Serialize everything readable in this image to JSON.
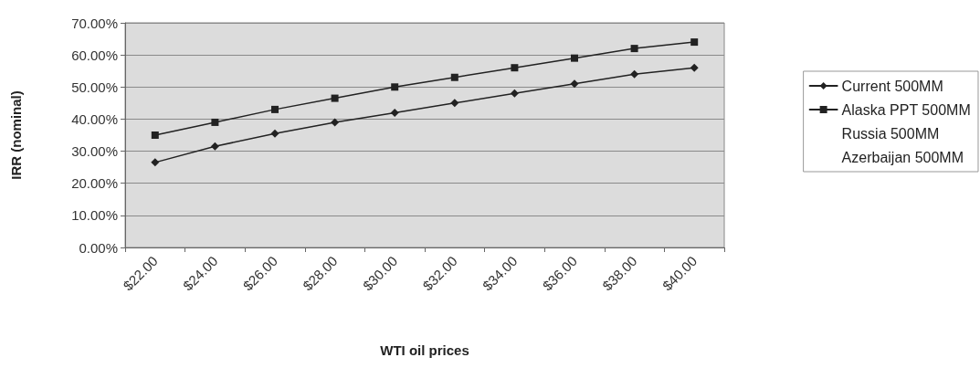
{
  "chart_data": {
    "type": "line",
    "xlabel": "WTI oil prices",
    "ylabel": "IRR (nominal)",
    "categories": [
      "$22.00",
      "$24.00",
      "$26.00",
      "$28.00",
      "$30.00",
      "$32.00",
      "$34.00",
      "$36.00",
      "$38.00",
      "$40.00"
    ],
    "series": [
      {
        "name": "Current 500MM",
        "color": "#222222",
        "marker": "diamond",
        "values": [
          26.5,
          31.5,
          35.5,
          39,
          42,
          45,
          48,
          51,
          54,
          56
        ]
      },
      {
        "name": "Alaska PPT 500MM",
        "color": "#222222",
        "marker": "square",
        "values": [
          35,
          39,
          43,
          46.5,
          50,
          53,
          56,
          59,
          62,
          64
        ]
      },
      {
        "name": "Russia 500MM",
        "marker": "none",
        "values": [
          null,
          null,
          null,
          null,
          null,
          null,
          null,
          null,
          null,
          null
        ]
      },
      {
        "name": "Azerbaijan 500MM",
        "marker": "none",
        "values": [
          null,
          null,
          null,
          null,
          null,
          null,
          null,
          null,
          null,
          null
        ]
      }
    ],
    "ylim": [
      0,
      70
    ],
    "yticks": [
      {
        "value": 0,
        "label": "0.00%"
      },
      {
        "value": 10,
        "label": "10.00%"
      },
      {
        "value": 20,
        "label": "20.00%"
      },
      {
        "value": 30,
        "label": "30.00%"
      },
      {
        "value": 40,
        "label": "40.00%"
      },
      {
        "value": 50,
        "label": "50.00%"
      },
      {
        "value": 60,
        "label": "60.00%"
      },
      {
        "value": 70,
        "label": "70.00%"
      }
    ],
    "grid": "y",
    "legend": "right",
    "line_style": "solid"
  }
}
